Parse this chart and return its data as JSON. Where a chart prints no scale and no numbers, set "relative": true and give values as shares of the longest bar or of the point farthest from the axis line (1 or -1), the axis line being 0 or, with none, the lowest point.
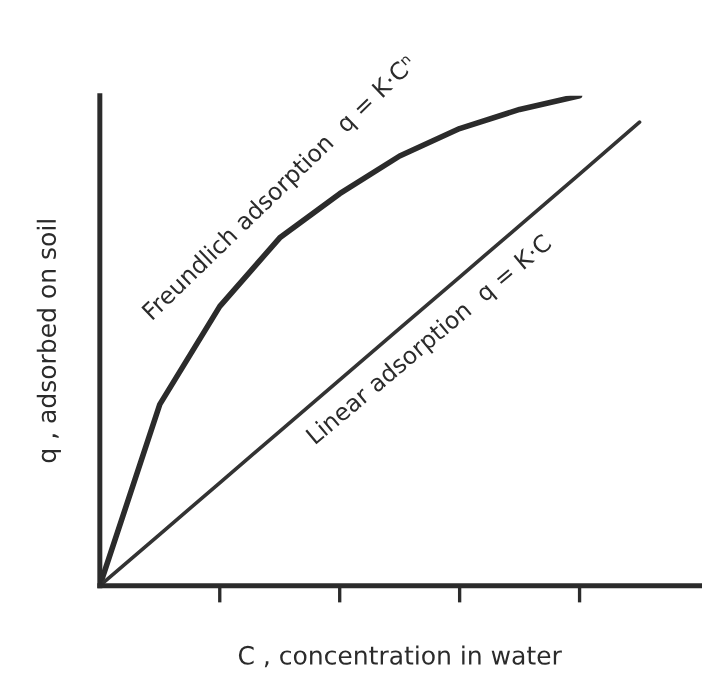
{
  "chart_data": {
    "type": "line",
    "relative": true,
    "xlabel": "C , concentration in water",
    "ylabel": "q , adsorbed on soil",
    "categories": [
      null,
      null,
      null,
      null,
      null,
      null,
      null,
      null,
      null,
      null
    ],
    "grid": false,
    "legend": false,
    "marker": "none",
    "line_style": "solid",
    "series": [
      {
        "color": "#2b2b2b",
        "values": [
          0,
          0.37,
          0.57,
          0.71,
          0.8,
          0.877,
          0.933,
          0.972,
          1.0,
          null
        ]
      },
      {
        "color": "#333333",
        "values": [
          0,
          0.105,
          0.21,
          0.315,
          0.42,
          0.525,
          0.63,
          0.735,
          0.84,
          0.946
        ]
      }
    ],
    "annotations": [
      "Freundlich adsorption  q = K·Cⁿ",
      "Linear adsorption  q = K·C"
    ]
  }
}
